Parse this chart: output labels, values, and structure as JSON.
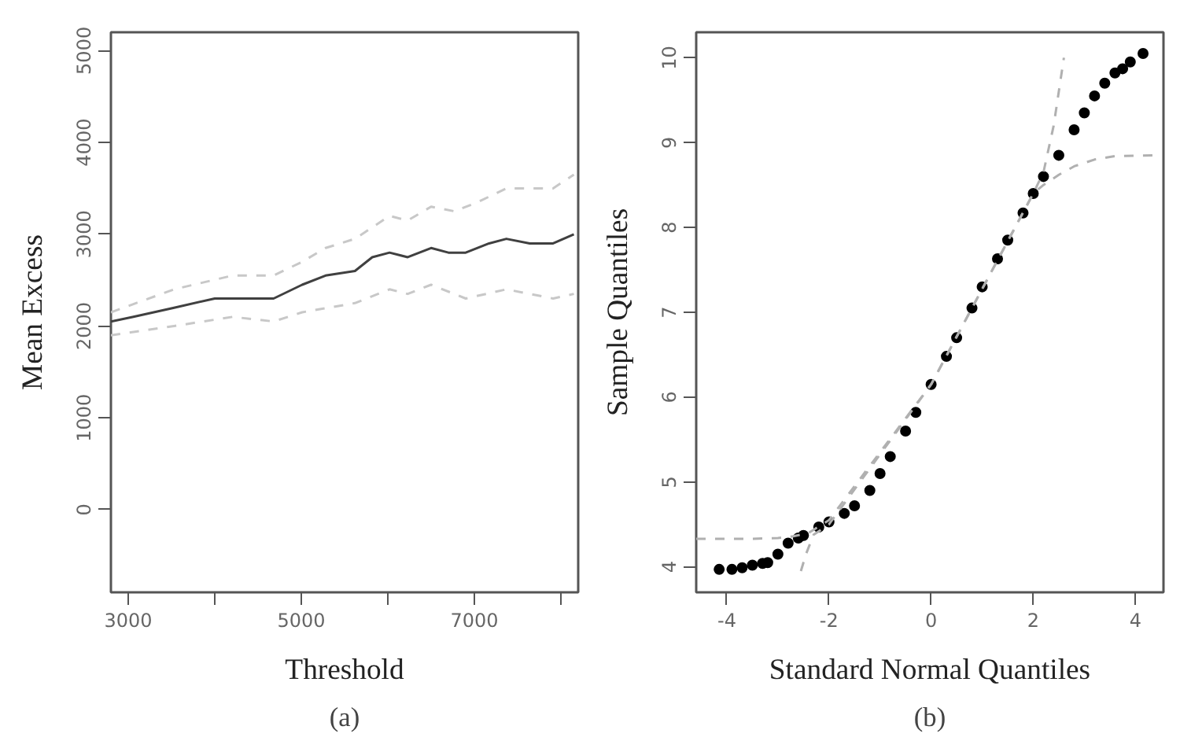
{
  "chart_data": [
    {
      "type": "line",
      "xlabel": "Threshold",
      "ylabel": "Mean Excess",
      "annotations": [
        "(a)"
      ],
      "grid": false,
      "xlim": [
        2800,
        8200
      ],
      "ylim": [
        -900,
        5200
      ],
      "xticks": [
        3000,
        {
          "value": 4000,
          "label": null
        },
        5000,
        {
          "value": 6000,
          "label": null
        },
        7000,
        {
          "value": 8000,
          "label": null
        }
      ],
      "yticks": [
        0,
        1000,
        2000,
        3000,
        4000,
        5000
      ],
      "x": [
        2800,
        3060,
        3530,
        4000,
        4205,
        4340,
        4680,
        5010,
        5280,
        5620,
        5820,
        6020,
        6230,
        6500,
        6700,
        6900,
        7170,
        7370,
        7640,
        7910,
        8150
      ],
      "series": [
        {
          "color": "#404040",
          "line_style": "solid",
          "values": [
            2050,
            2100,
            2200,
            2300,
            2300,
            2300,
            2300,
            2450,
            2550,
            2600,
            2750,
            2800,
            2750,
            2850,
            2800,
            2800,
            2900,
            2950,
            2900,
            2900,
            3000
          ]
        },
        {
          "color": "#c8c8c8",
          "line_style": "dashed",
          "x": [
            2800,
            3530,
            4205,
            4680,
            5010,
            5280,
            5620,
            6020,
            6230,
            6500,
            6770,
            7040,
            7370,
            7640,
            7910,
            8150
          ],
          "values": [
            2150,
            2400,
            2550,
            2550,
            2700,
            2850,
            2950,
            3200,
            3150,
            3300,
            3250,
            3350,
            3500,
            3500,
            3500,
            3650
          ]
        },
        {
          "color": "#c8c8c8",
          "line_style": "dashed",
          "x": [
            2800,
            3530,
            4205,
            4680,
            5010,
            5620,
            6020,
            6230,
            6500,
            6900,
            7370,
            7910,
            8150
          ],
          "values": [
            1900,
            2000,
            2100,
            2050,
            2150,
            2250,
            2400,
            2350,
            2450,
            2300,
            2400,
            2300,
            2350
          ]
        }
      ]
    },
    {
      "type": "scatter",
      "xlabel": "Standard Normal Quantiles",
      "ylabel": "Sample Quantiles",
      "annotations": [
        "(b)"
      ],
      "grid": false,
      "xlim": [
        -4.6,
        4.55
      ],
      "ylim": [
        3.7,
        10.3
      ],
      "xticks": [
        -4,
        -2,
        0,
        2,
        4
      ],
      "yticks": [
        4,
        5,
        6,
        7,
        8,
        9,
        10
      ],
      "series": [
        {
          "type": "scatter",
          "marker": "circle",
          "color": "#000000",
          "x": [
            -4.15,
            -3.9,
            -3.7,
            -3.5,
            -3.3,
            -3.2,
            -3.0,
            -2.8,
            -2.6,
            -2.5,
            -2.2,
            -2.0,
            -1.7,
            -1.5,
            -1.2,
            -1.0,
            -0.8,
            -0.5,
            -0.3,
            0,
            0.3,
            0.5,
            0.8,
            1.0,
            1.3,
            1.5,
            1.8,
            2.0,
            2.2,
            2.5,
            2.8,
            3.0,
            3.2,
            3.4,
            3.6,
            3.75,
            3.9,
            4.15
          ],
          "values": [
            3.97,
            3.97,
            3.99,
            4.02,
            4.04,
            4.05,
            4.15,
            4.28,
            4.34,
            4.37,
            4.47,
            4.53,
            4.63,
            4.72,
            4.9,
            5.1,
            5.3,
            5.6,
            5.82,
            6.15,
            6.48,
            6.7,
            7.05,
            7.3,
            7.63,
            7.85,
            8.17,
            8.4,
            8.6,
            8.85,
            9.15,
            9.35,
            9.55,
            9.7,
            9.82,
            9.87,
            9.95,
            10.05
          ]
        },
        {
          "type": "line",
          "line_style": "dashed",
          "color": "#b0b0b0",
          "x": [
            -4.6,
            -3.5,
            -3.0,
            -2.7,
            -2.4,
            -2.0,
            0,
            2.0,
            2.2,
            2.4,
            2.6
          ],
          "values": [
            4.33,
            4.33,
            4.34,
            4.36,
            4.4,
            4.55,
            6.15,
            8.4,
            8.65,
            9.2,
            10.0
          ]
        },
        {
          "type": "line",
          "line_style": "dashed",
          "color": "#b0b0b0",
          "x": [
            -2.55,
            -2.45,
            -2.3,
            -2.0,
            0,
            2.0,
            2.2,
            2.5,
            2.8,
            3.2,
            3.6,
            4.5
          ],
          "values": [
            3.95,
            4.15,
            4.38,
            4.5,
            6.15,
            8.4,
            8.5,
            8.62,
            8.72,
            8.8,
            8.84,
            8.85
          ]
        }
      ]
    }
  ]
}
